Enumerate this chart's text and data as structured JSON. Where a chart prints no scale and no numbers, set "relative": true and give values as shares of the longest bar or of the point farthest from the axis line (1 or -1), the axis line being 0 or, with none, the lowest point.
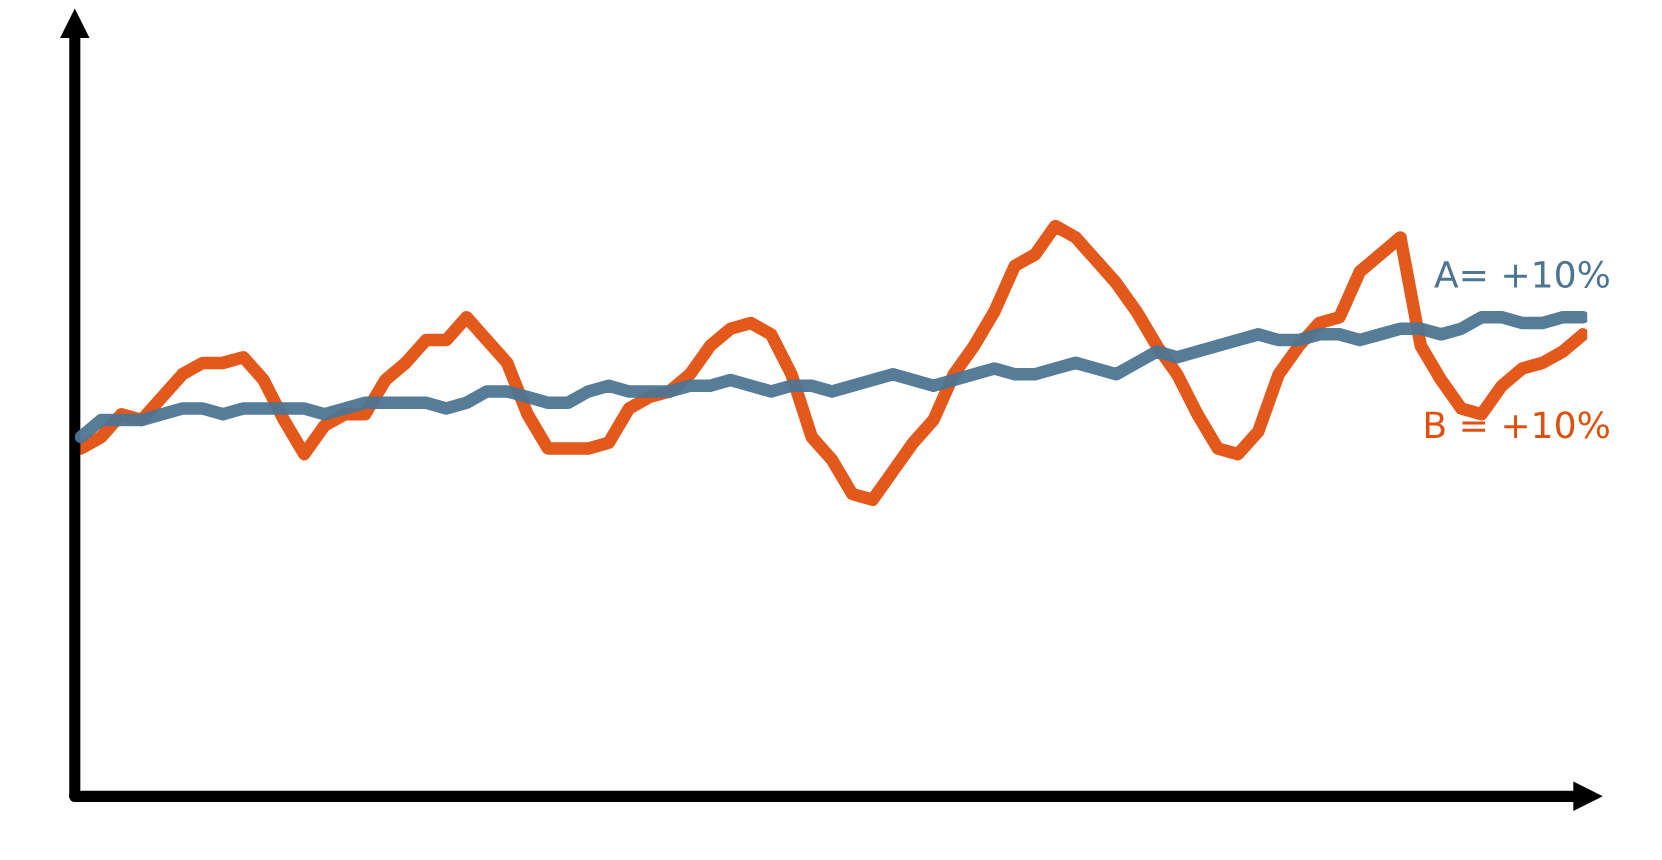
{
  "chart_data": {
    "type": "line",
    "relative": true,
    "legend": false,
    "marker": "none",
    "line_style": "solid",
    "categories": [
      null,
      null,
      null,
      null,
      null,
      null,
      null,
      null,
      null,
      null,
      null,
      null,
      null,
      null,
      null,
      null,
      null,
      null,
      null,
      null,
      null,
      null,
      null,
      null,
      null,
      null,
      null,
      null,
      null,
      null,
      null,
      null,
      null,
      null,
      null,
      null,
      null,
      null,
      null,
      null,
      null,
      null,
      null,
      null,
      null,
      null,
      null,
      null,
      null,
      null,
      null,
      null,
      null,
      null,
      null,
      null,
      null,
      null,
      null,
      null,
      null,
      null,
      null,
      null,
      null,
      null,
      null,
      null,
      null,
      null,
      null,
      null,
      null,
      null,
      null
    ],
    "series": [
      {
        "name": "A= +10%",
        "color": "#4d7591",
        "values": [
          0.63,
          0.66,
          0.66,
          0.66,
          0.67,
          0.68,
          0.68,
          0.67,
          0.68,
          0.68,
          0.68,
          0.68,
          0.67,
          0.68,
          0.69,
          0.69,
          0.69,
          0.69,
          0.68,
          0.69,
          0.71,
          0.71,
          0.7,
          0.69,
          0.69,
          0.71,
          0.72,
          0.71,
          0.71,
          0.71,
          0.72,
          0.72,
          0.73,
          0.72,
          0.71,
          0.72,
          0.72,
          0.71,
          0.72,
          0.73,
          0.74,
          0.73,
          0.72,
          0.73,
          0.74,
          0.75,
          0.74,
          0.74,
          0.75,
          0.76,
          0.75,
          0.74,
          0.76,
          0.78,
          0.77,
          0.78,
          0.79,
          0.8,
          0.81,
          0.8,
          0.8,
          0.81,
          0.81,
          0.8,
          0.81,
          0.82,
          0.82,
          0.81,
          0.82,
          0.84,
          0.84,
          0.83,
          0.83,
          0.84,
          0.84
        ]
      },
      {
        "name": "B = +10%",
        "color": "#e0500f",
        "values": [
          0.61,
          0.63,
          0.67,
          0.66,
          0.7,
          0.74,
          0.76,
          0.76,
          0.77,
          0.73,
          0.66,
          0.6,
          0.65,
          0.67,
          0.67,
          0.73,
          0.76,
          0.8,
          0.8,
          0.84,
          0.8,
          0.76,
          0.67,
          0.61,
          0.61,
          0.61,
          0.62,
          0.68,
          0.7,
          0.71,
          0.74,
          0.79,
          0.82,
          0.83,
          0.81,
          0.74,
          0.63,
          0.59,
          0.53,
          0.52,
          0.57,
          0.62,
          0.66,
          0.74,
          0.79,
          0.85,
          0.93,
          0.95,
          1.0,
          0.98,
          0.94,
          0.9,
          0.85,
          0.79,
          0.74,
          0.67,
          0.61,
          0.6,
          0.64,
          0.74,
          0.79,
          0.83,
          0.84,
          0.92,
          0.95,
          0.98,
          0.79,
          0.73,
          0.68,
          0.67,
          0.72,
          0.75,
          0.76,
          0.78,
          0.81
        ]
      }
    ]
  }
}
